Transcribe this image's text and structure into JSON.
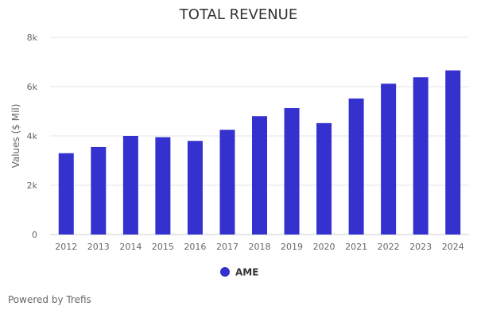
{
  "chart_data": {
    "type": "bar",
    "title": "TOTAL REVENUE",
    "xlabel": "",
    "ylabel": "Values ($ Mil)",
    "categories": [
      "2012",
      "2013",
      "2014",
      "2015",
      "2016",
      "2017",
      "2018",
      "2019",
      "2020",
      "2021",
      "2022",
      "2023",
      "2024"
    ],
    "series": [
      {
        "name": "AME",
        "color": "#3531cf",
        "values": [
          3300,
          3550,
          4000,
          3950,
          3800,
          4250,
          4800,
          5130,
          4520,
          5520,
          6120,
          6380,
          6660
        ]
      }
    ],
    "ylim": [
      0,
      8000
    ],
    "yticks": [
      0,
      2000,
      4000,
      6000,
      8000
    ],
    "ytick_labels": [
      "0",
      "2k",
      "4k",
      "6k",
      "8k"
    ],
    "grid": true,
    "legend_position": "bottom-center"
  },
  "footer": {
    "text": "Powered by Trefis"
  }
}
